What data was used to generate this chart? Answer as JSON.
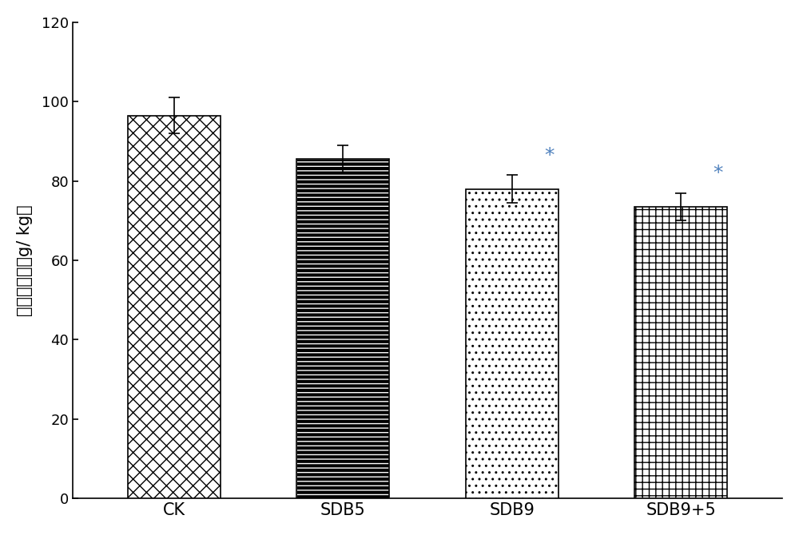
{
  "categories": [
    "CK",
    "SDB5",
    "SDB9",
    "SDB9+5"
  ],
  "values": [
    96.5,
    85.5,
    78.0,
    73.5
  ],
  "errors": [
    4.5,
    3.5,
    3.5,
    3.5
  ],
  "ylabel": "硬酸盐含量（g/ kg）",
  "ylim": [
    0,
    120
  ],
  "yticks": [
    0,
    20,
    40,
    60,
    80,
    100,
    120
  ],
  "significance": [
    false,
    false,
    true,
    true
  ],
  "sig_color": "#4f81bd",
  "sig_marker": "*",
  "background_color": "#ffffff",
  "bar_width": 0.55,
  "hatch_patterns": [
    "xx",
    "---",
    "..",
    "++"
  ],
  "bar_facecolors": [
    "white",
    "black",
    "white",
    "white"
  ],
  "bar_edgecolors": [
    "black",
    "white",
    "black",
    "black"
  ],
  "hatch_colors": [
    "black",
    "white",
    "black",
    "black"
  ]
}
